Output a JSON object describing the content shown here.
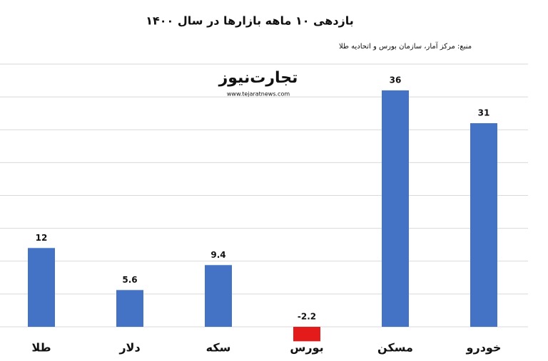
{
  "chart_data": {
    "type": "bar",
    "title": "بازدهی ۱۰ ماهه بازارها در سال ۱۴۰۰",
    "subtitle": "منبع: مرکز آمار، سازمان بورس و اتحادیه طلا",
    "logo": "تجارت‌نیوز",
    "logo_url": "www.tejaratnews.com",
    "categories": [
      "طلا",
      "دلار",
      "سکه",
      "بورس",
      "مسکن",
      "خودرو"
    ],
    "values": [
      12,
      5.6,
      9.4,
      -2.2,
      36,
      31
    ],
    "colors": [
      "#4472c4",
      "#4472c4",
      "#4472c4",
      "#e31b1b",
      "#4472c4",
      "#4472c4"
    ],
    "ylim": [
      0,
      40
    ],
    "yticks": [
      0,
      5,
      10,
      15,
      20,
      25,
      30,
      35,
      40
    ],
    "grid": true
  }
}
